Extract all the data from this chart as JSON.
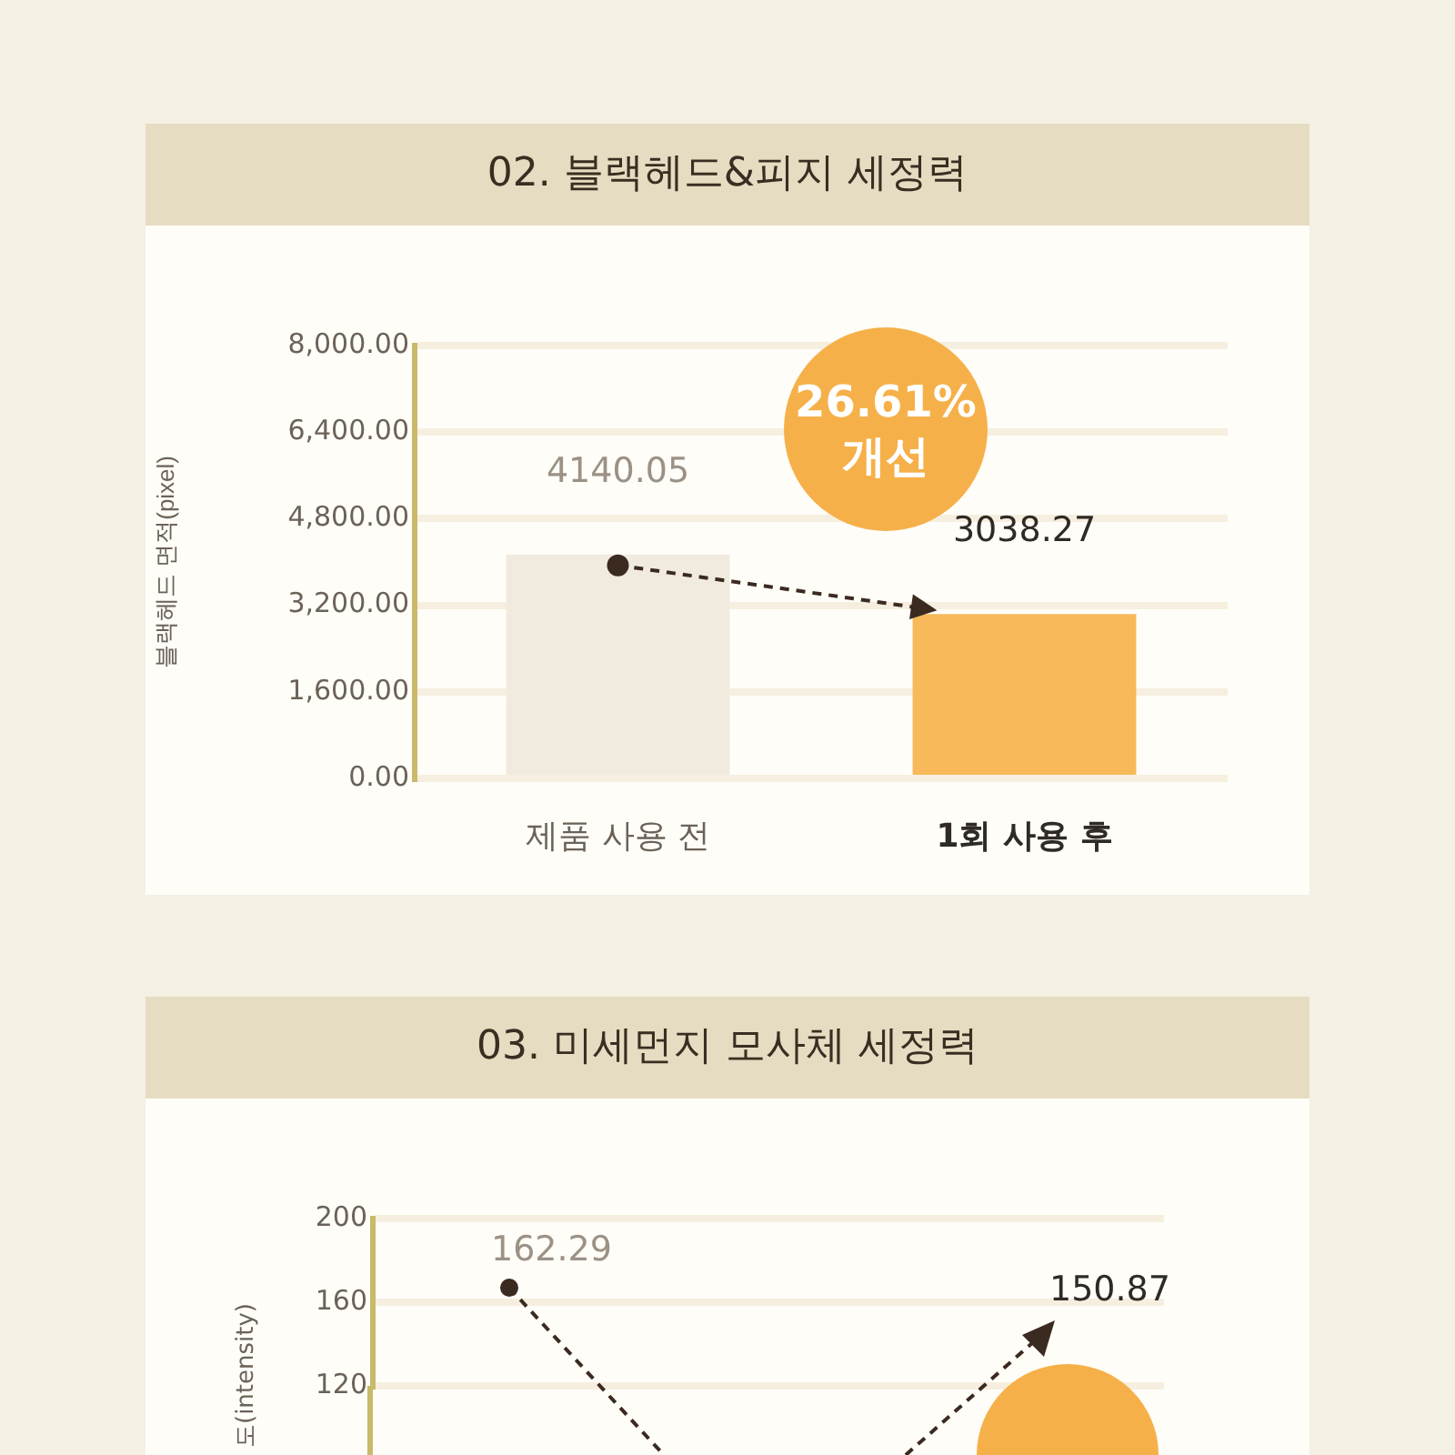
{
  "chart_data": [
    {
      "type": "bar",
      "title": "02. 블랙헤드&피지 세정력",
      "ylabel": "블랙헤드 면적(pixel)",
      "categories": [
        "제품 사용 전",
        "1회 사용 후"
      ],
      "values": [
        4140.05,
        3038.27
      ],
      "colors": [
        "#f1ebdf",
        "#f7b95a"
      ],
      "ylim": [
        0,
        8000
      ],
      "yticks": [
        {
          "value": 0,
          "label": "0.00"
        },
        {
          "value": 1600,
          "label": "1,600.00"
        },
        {
          "value": 3200,
          "label": "3,200.00"
        },
        {
          "value": 4800,
          "label": "4,800.00"
        },
        {
          "value": 6400,
          "label": "6,400.00"
        },
        {
          "value": 8000,
          "label": "8,000.00"
        }
      ],
      "grid": "y",
      "data_labels": true,
      "annotations": [
        "26.61% 개선"
      ]
    },
    {
      "type": "bar",
      "title": "03. 미세먼지 모사체 세정력",
      "ylabel": "도(intensity)",
      "categories": [
        null,
        null,
        null
      ],
      "values": [
        null,
        null,
        null
      ],
      "ylim": [
        120,
        200
      ],
      "yticks": [
        120,
        160,
        200
      ],
      "grid": "y",
      "annotations": [
        "162.29",
        "150.87"
      ]
    }
  ]
}
